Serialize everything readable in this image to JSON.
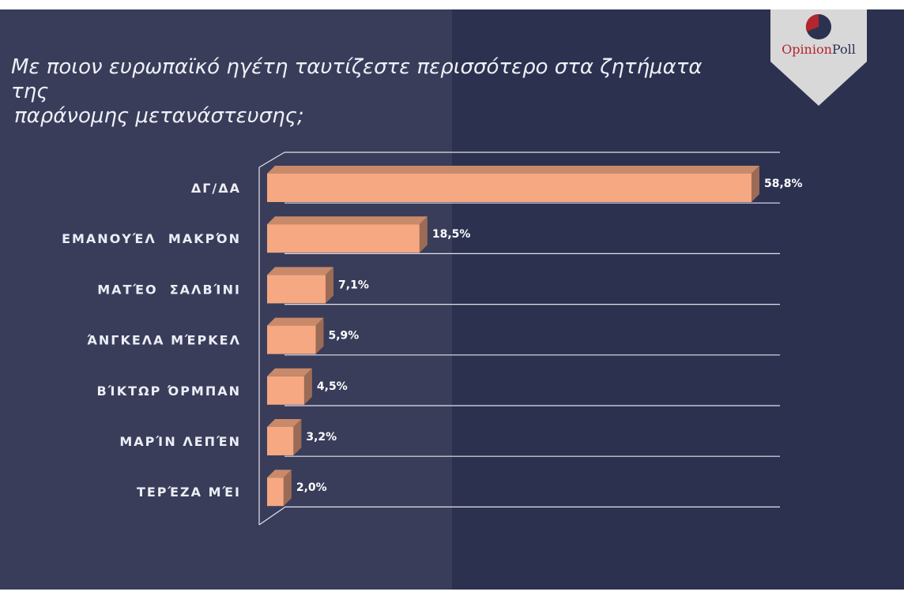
{
  "title_line1": "Με ποιον ευρωπαϊκό ηγέτη ταυτίζεστε περισσότερο στα ζητήματα της",
  "title_line2": "παράνομης μετανάστευσης;",
  "logo": {
    "text_opinion": "Opinion",
    "text_poll": "Poll",
    "colors": {
      "red": "#b3262f",
      "navy": "#2c3150",
      "badge": "#d8d8d8"
    }
  },
  "colors": {
    "bar_front": "#f5a882",
    "bar_top": "#c98a6a",
    "bar_side": "#9c6b55",
    "grid": "#e3e3ea"
  },
  "chart_data": {
    "type": "bar",
    "orientation": "horizontal",
    "categories": [
      "ΔΓ/ΔΑ",
      "ΕΜΑΝΟΥΈΛ  ΜΑΚΡΌΝ",
      "ΜΑΤΈΟ  ΣΑΛΒΊΝΙ",
      "ΆΝΓΚΕΛΑ ΜΈΡΚΕΛ",
      "ΒΊΚΤΩΡ ΌΡΜΠΑΝ",
      "ΜΑΡΊΝ ΛΕΠΈΝ",
      "ΤΕΡΈΖΑ ΜΈΙ"
    ],
    "values": [
      58.8,
      18.5,
      7.1,
      5.9,
      4.5,
      3.2,
      2.0
    ],
    "value_labels": [
      "58,8%",
      "18,5%",
      "7,1%",
      "5,9%",
      "4,5%",
      "3,2%",
      "2,0%"
    ],
    "xlim": [
      0,
      60
    ],
    "grid": true
  }
}
